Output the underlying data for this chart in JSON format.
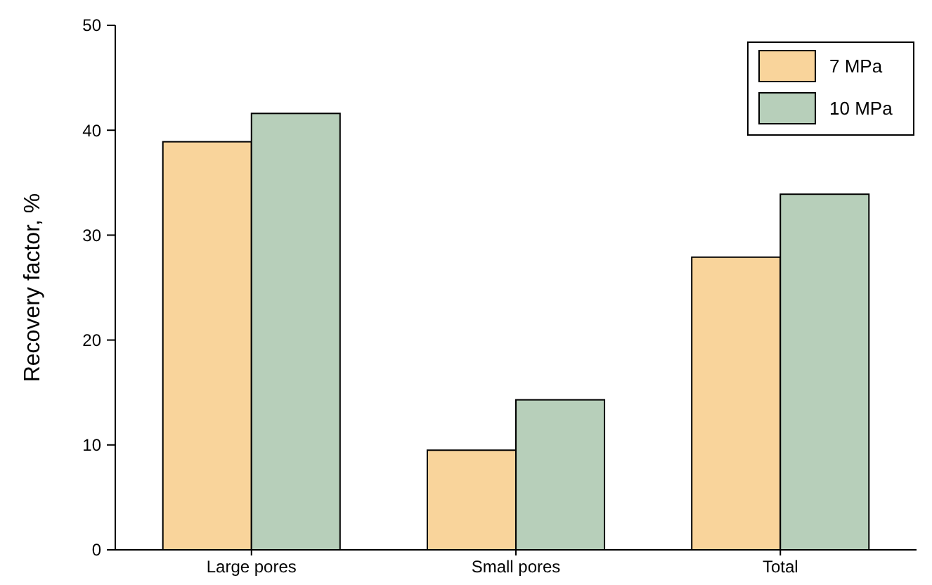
{
  "chart_data": {
    "type": "bar",
    "ylabel": "Recovery factor, %",
    "categories": [
      "Large pores",
      "Small pores",
      "Total"
    ],
    "series": [
      {
        "name": "7 MPa",
        "color": "#f9d49b",
        "values": [
          38.9,
          9.5,
          27.9
        ]
      },
      {
        "name": "10 MPa",
        "color": "#b7cfba",
        "values": [
          41.6,
          14.3,
          33.9
        ]
      }
    ],
    "ylim": [
      0,
      50
    ],
    "yticks": [
      0,
      10,
      20,
      30,
      40,
      50
    ],
    "grid": false,
    "legend": "top right"
  }
}
